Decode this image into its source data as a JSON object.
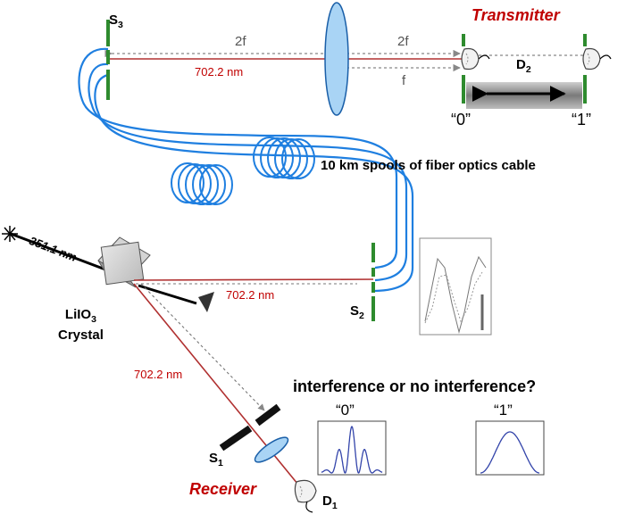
{
  "labels": {
    "s3": "S",
    "s3_sub": "3",
    "twof_left": "2f",
    "twof_right": "2f",
    "f": "f",
    "wavelength_top": "702.2 nm",
    "transmitter": "Transmitter",
    "d2": "D",
    "d2_sub": "2",
    "zero_top": "“0”",
    "one_top": "“1”",
    "spools": "10 km spools of fiber optics cable",
    "pump": "351.1 nm",
    "wavelength_mid": "702.2 nm",
    "s2": "S",
    "s2_sub": "2",
    "crystal_line1": "LiIO",
    "crystal_sub": "3",
    "crystal_line2": "Crystal",
    "wavelength_low": "702.2 nm",
    "question": "interference or no interference?",
    "zero_bottom": "“0”",
    "one_bottom": "“1”",
    "s1": "S",
    "s1_sub": "1",
    "receiver": "Receiver",
    "d1": "D",
    "d1_sub": "1"
  },
  "colors": {
    "beam": "#b03030",
    "fiber": "#1f7fe0",
    "slit": "#2e8b2e",
    "lens": "#a9d4f5",
    "curve": "#3344aa",
    "receiver_text": "#c00000"
  }
}
